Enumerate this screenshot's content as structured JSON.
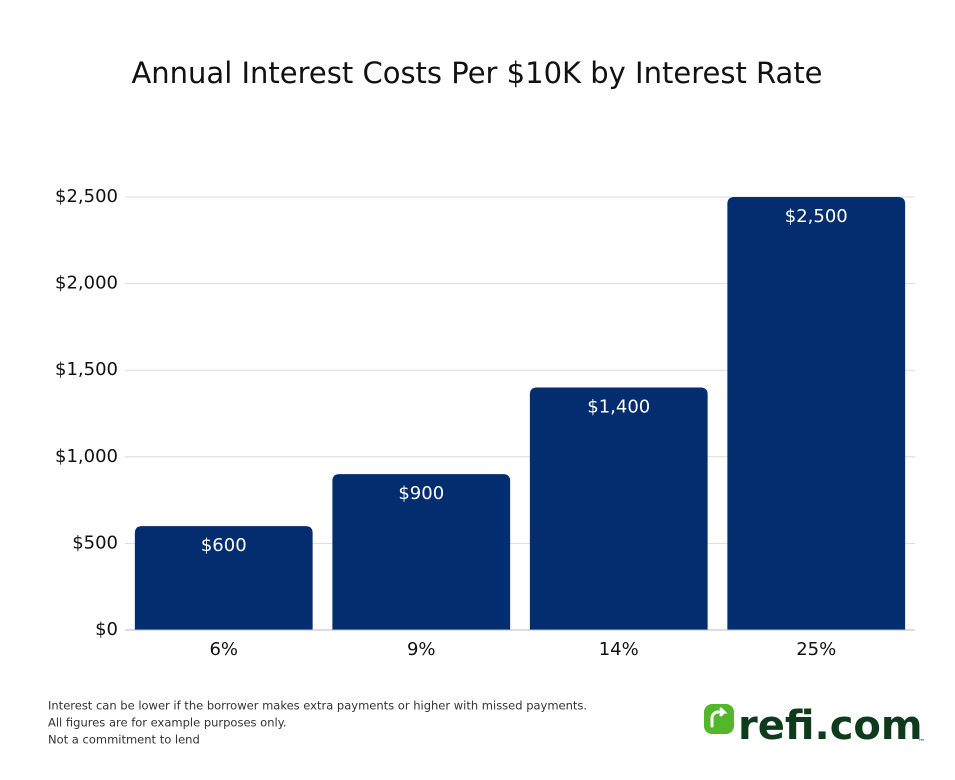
{
  "chart_data": {
    "type": "bar",
    "title": "Annual Interest Costs Per $10K by Interest Rate",
    "categories": [
      "6%",
      "9%",
      "14%",
      "25%"
    ],
    "values": [
      600,
      900,
      1400,
      2500
    ],
    "value_labels": [
      "$600",
      "$900",
      "$1,400",
      "$2,500"
    ],
    "color": "#032d6f",
    "ylim": [
      0,
      2500
    ],
    "yticks": [
      {
        "value": 0,
        "label": "$0"
      },
      {
        "value": 500,
        "label": "$500"
      },
      {
        "value": 1000,
        "label": "$1,000"
      },
      {
        "value": 1500,
        "label": "$1,500"
      },
      {
        "value": 2000,
        "label": "$2,000"
      },
      {
        "value": 2500,
        "label": "$2,500"
      }
    ],
    "grid": true
  },
  "footer": {
    "notes": [
      "Interest can be lower if the borrower makes extra payments or higher with missed payments.",
      "All figures are for example purposes only.",
      "Not a commitment to lend"
    ],
    "logo": {
      "text": "refi.com",
      "trademark": "™"
    }
  }
}
